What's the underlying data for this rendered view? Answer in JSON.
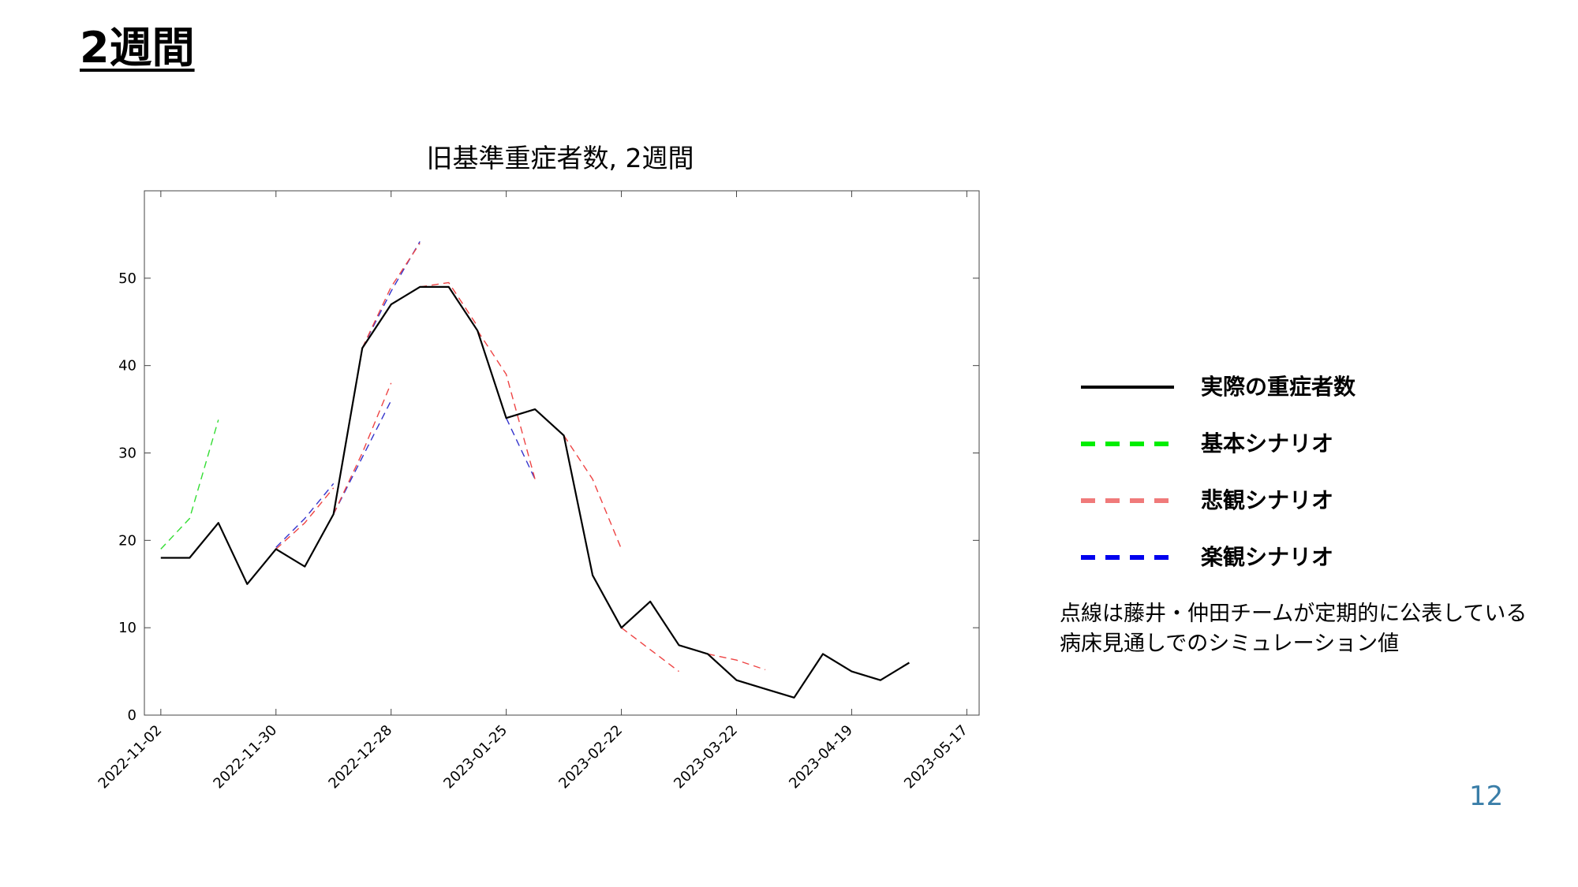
{
  "slide": {
    "title": "2週間",
    "note": "点線は藤井・仲田チームが定期的に公表している\n病床見通しでのシミュレーション値",
    "page_number": "12"
  },
  "legend": [
    {
      "label": "実際の重症者数",
      "color": "#000000",
      "style": "solid"
    },
    {
      "label": "基本シナリオ",
      "color": "#00ee00",
      "style": "dashed"
    },
    {
      "label": "悲観シナリオ",
      "color": "#f07a7a",
      "style": "dashed"
    },
    {
      "label": "楽観シナリオ",
      "color": "#0000ee",
      "style": "dashed"
    }
  ],
  "chart_data": {
    "type": "line",
    "title": "旧基準重症者数, 2週間",
    "xlabel": "",
    "ylabel": "",
    "xlim": [
      "2022-10-29",
      "2023-05-20"
    ],
    "ylim": [
      0,
      60
    ],
    "x_ticks": [
      "2022-11-02",
      "2022-11-30",
      "2022-12-28",
      "2023-01-25",
      "2023-02-22",
      "2023-03-22",
      "2023-04-19",
      "2023-05-17"
    ],
    "y_ticks": [
      0,
      10,
      20,
      30,
      40,
      50
    ],
    "grid": false,
    "series": [
      {
        "name": "実際の重症者数",
        "color": "#000000",
        "style": "solid",
        "width": 2.2,
        "x": [
          "2022-11-02",
          "2022-11-09",
          "2022-11-16",
          "2022-11-23",
          "2022-11-30",
          "2022-12-07",
          "2022-12-14",
          "2022-12-21",
          "2022-12-28",
          "2023-01-04",
          "2023-01-11",
          "2023-01-18",
          "2023-01-25",
          "2023-02-01",
          "2023-02-08",
          "2023-02-15",
          "2023-02-22",
          "2023-03-01",
          "2023-03-08",
          "2023-03-15",
          "2023-03-22",
          "2023-03-29",
          "2023-04-05",
          "2023-04-12",
          "2023-04-19",
          "2023-04-26",
          "2023-05-03"
        ],
        "y": [
          18,
          18,
          22,
          15,
          19,
          17,
          23,
          42,
          47,
          49,
          49,
          44,
          34,
          35,
          32,
          16,
          10,
          13,
          8,
          7,
          4,
          3,
          2,
          7,
          5,
          4,
          6
        ]
      },
      {
        "name": "基本シナリオ",
        "color": "#33dd33",
        "style": "dashed",
        "width": 1.4,
        "x": [
          "2022-11-02",
          "2022-11-09",
          "2022-11-16"
        ],
        "y": [
          19,
          22.5,
          33.8
        ]
      },
      {
        "name": "楽観シナリオ",
        "color": "#3333cc",
        "style": "dashed",
        "width": 1.4,
        "x": [
          "2022-11-30",
          "2022-12-07",
          "2022-12-14"
        ],
        "y": [
          19.2,
          22.5,
          26.5
        ]
      },
      {
        "name": "悲観シナリオ",
        "color": "#ee4444",
        "style": "dashed",
        "width": 1.4,
        "x": [
          "2022-11-30",
          "2022-12-07",
          "2022-12-14"
        ],
        "y": [
          19,
          22,
          26
        ]
      },
      {
        "name": "楽観シナリオ",
        "color": "#3333cc",
        "style": "dashed",
        "width": 1.4,
        "x": [
          "2022-12-14",
          "2022-12-21",
          "2022-12-28"
        ],
        "y": [
          23,
          29.5,
          36
        ]
      },
      {
        "name": "悲観シナリオ",
        "color": "#ee4444",
        "style": "dashed",
        "width": 1.4,
        "x": [
          "2022-12-14",
          "2022-12-21",
          "2022-12-28"
        ],
        "y": [
          23,
          30,
          38
        ]
      },
      {
        "name": "楽観シナリオ",
        "color": "#3333cc",
        "style": "dashed",
        "width": 1.4,
        "x": [
          "2022-12-21",
          "2022-12-28",
          "2023-01-04"
        ],
        "y": [
          42,
          48.5,
          54.2
        ]
      },
      {
        "name": "悲観シナリオ",
        "color": "#ee4444",
        "style": "dashed",
        "width": 1.4,
        "x": [
          "2022-12-21",
          "2022-12-28",
          "2023-01-04"
        ],
        "y": [
          42,
          49,
          54
        ]
      },
      {
        "name": "楽観シナリオ",
        "color": "#3333cc",
        "style": "dashed",
        "width": 1.4,
        "x": [
          "2023-01-04",
          "2023-01-11",
          "2023-01-18"
        ],
        "y": [
          49,
          49,
          44
        ]
      },
      {
        "name": "悲観シナリオ",
        "color": "#ee4444",
        "style": "dashed",
        "width": 1.4,
        "x": [
          "2023-01-04",
          "2023-01-11",
          "2023-01-18"
        ],
        "y": [
          49,
          49.5,
          44.5
        ]
      },
      {
        "name": "楽観シナリオ",
        "color": "#3333cc",
        "style": "dashed",
        "width": 1.4,
        "x": [
          "2023-01-25",
          "2023-02-01"
        ],
        "y": [
          34,
          27
        ]
      },
      {
        "name": "悲観シナリオ",
        "color": "#ee4444",
        "style": "dashed",
        "width": 1.4,
        "x": [
          "2023-01-18",
          "2023-01-25",
          "2023-02-01"
        ],
        "y": [
          44,
          39,
          27
        ]
      },
      {
        "name": "悲観シナリオ",
        "color": "#ee4444",
        "style": "dashed",
        "width": 1.4,
        "x": [
          "2023-02-08",
          "2023-02-15",
          "2023-02-22"
        ],
        "y": [
          32,
          27,
          19
        ]
      },
      {
        "name": "悲観シナリオ",
        "color": "#ee4444",
        "style": "dashed",
        "width": 1.4,
        "x": [
          "2023-02-22",
          "2023-03-01",
          "2023-03-08"
        ],
        "y": [
          10,
          7.5,
          5
        ]
      },
      {
        "name": "悲観シナリオ",
        "color": "#ee4444",
        "style": "dashed",
        "width": 1.4,
        "x": [
          "2023-03-15",
          "2023-03-22",
          "2023-03-29"
        ],
        "y": [
          7,
          6.3,
          5.2
        ]
      }
    ]
  }
}
